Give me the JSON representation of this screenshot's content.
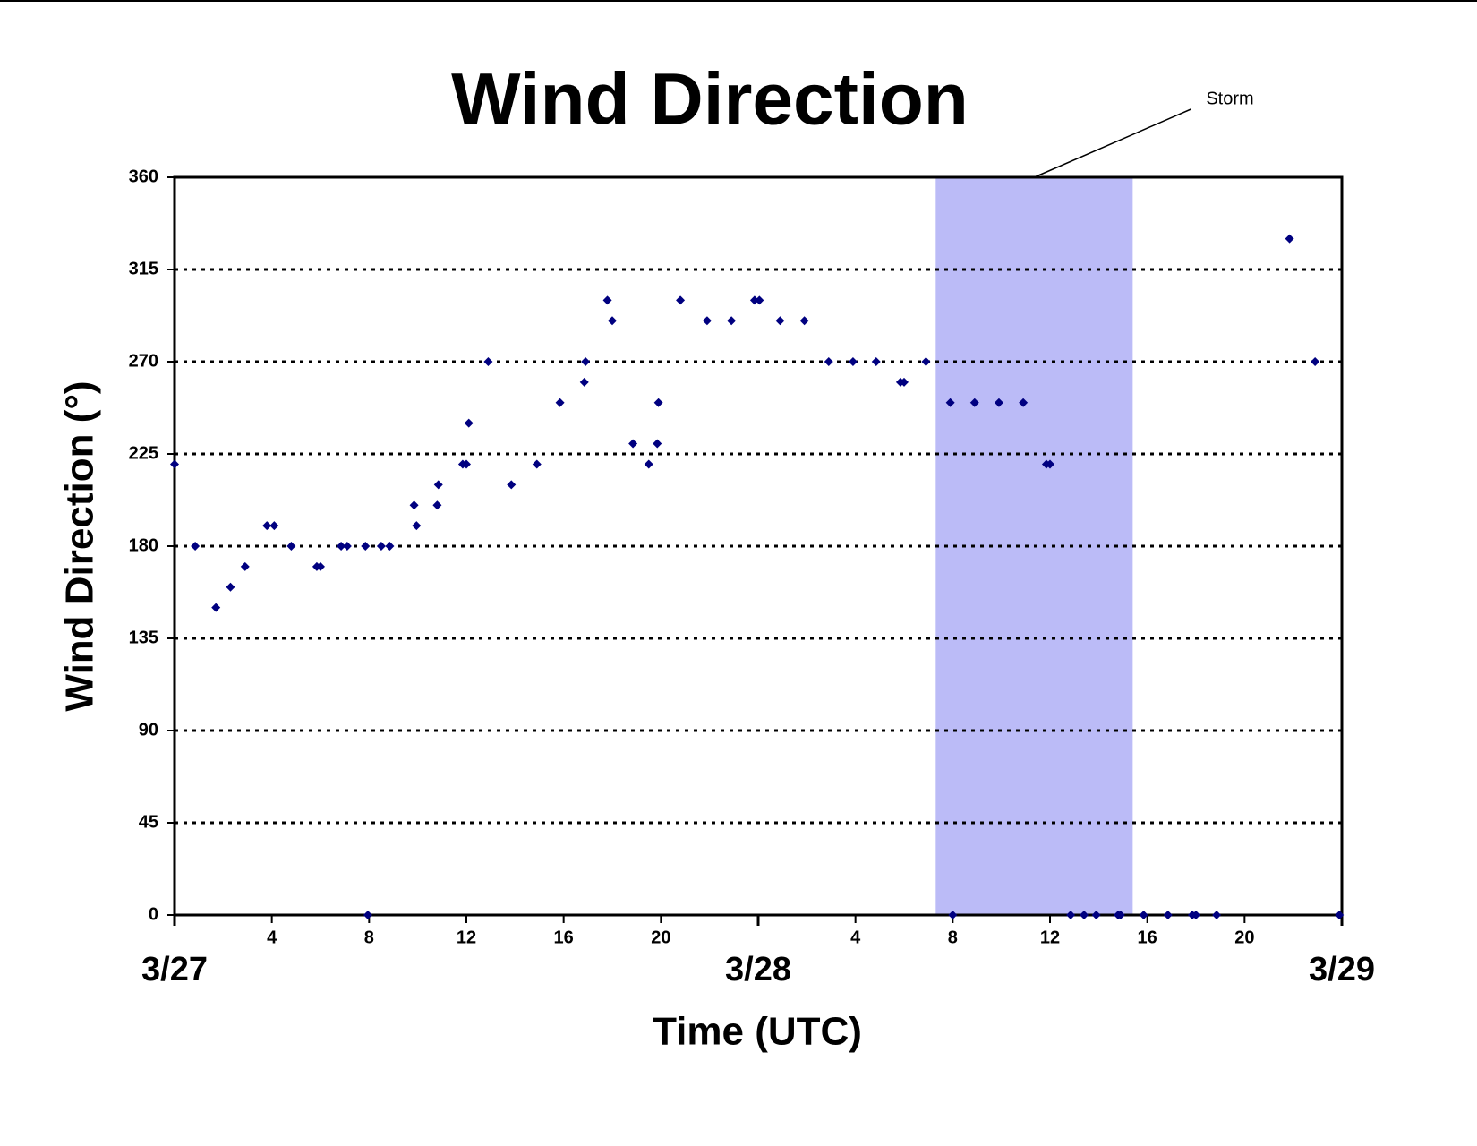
{
  "chart_data": {
    "type": "scatter",
    "title": "Wind Direction",
    "x_label": "Time (UTC)",
    "y_label": "Wind Direction (°)",
    "xlim": [
      0,
      48
    ],
    "xticks": [
      4,
      8,
      12,
      16,
      20,
      {
        "value": 28,
        "label": "4"
      },
      {
        "value": 32,
        "label": "8"
      },
      {
        "value": 36,
        "label": "12"
      },
      {
        "value": 40,
        "label": "16"
      },
      {
        "value": 44,
        "label": "20"
      }
    ],
    "xdate_ticks": [
      {
        "value": 0,
        "label": "3/27"
      },
      {
        "value": 24,
        "label": "3/28"
      },
      {
        "value": 48,
        "label": "3/29"
      }
    ],
    "ylim": [
      0,
      360
    ],
    "yticks": [
      0,
      45,
      90,
      135,
      180,
      225,
      270,
      315,
      360
    ],
    "grid": true,
    "annotations": [
      {
        "text": "Storm",
        "xrange": [
          31.3,
          39.4
        ],
        "color": "#bbbbf7"
      }
    ],
    "series": [
      {
        "color": "#000080",
        "x": [
          0,
          0.85,
          1.7,
          2.3,
          2.9,
          3.8,
          4.1,
          4.8,
          5.85,
          6,
          6.85,
          7.1,
          7.85,
          7.95,
          8.5,
          8.85,
          9.85,
          9.95,
          10.8,
          10.85,
          11.85,
          12,
          12.1,
          12.9,
          13.85,
          14.9,
          15.85,
          16.85,
          16.9,
          17.8,
          18,
          18.85,
          19.5,
          19.85,
          19.9,
          20.8,
          21.9,
          22.9,
          23.85,
          24.05,
          24.9,
          25.9,
          26.9,
          27.9,
          28.85,
          29.85,
          30,
          30.9,
          31.9,
          32,
          32.9,
          33.9,
          34.9,
          35.85,
          36,
          36.85,
          37.4,
          37.9,
          38.8,
          38.9,
          39.85,
          40.85,
          41.85,
          42,
          42.85,
          45.85,
          46.9,
          47.9
        ],
        "values": [
          220,
          180,
          150,
          160,
          170,
          190,
          190,
          180,
          170,
          170,
          180,
          180,
          180,
          0,
          180,
          180,
          200,
          190,
          200,
          210,
          220,
          220,
          240,
          270,
          210,
          220,
          250,
          260,
          270,
          300,
          290,
          230,
          220,
          230,
          250,
          300,
          290,
          290,
          300,
          300,
          290,
          290,
          270,
          270,
          270,
          260,
          260,
          270,
          250,
          0,
          250,
          250,
          250,
          220,
          220,
          0,
          0,
          0,
          0,
          0,
          0,
          0,
          0,
          0,
          0,
          330,
          270,
          0
        ]
      }
    ]
  }
}
